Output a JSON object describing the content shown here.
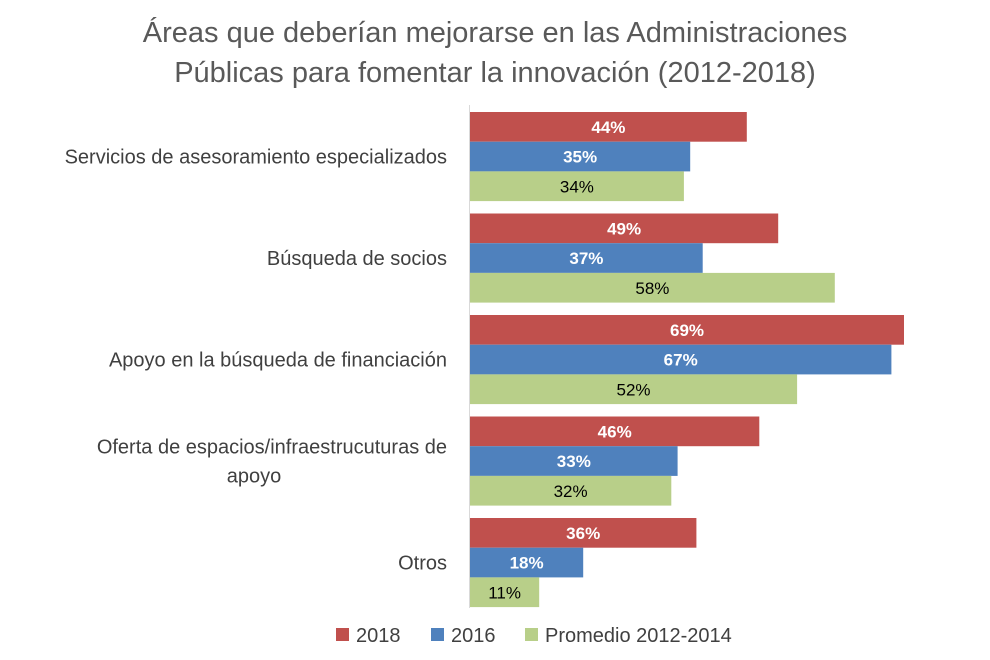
{
  "chart_data": {
    "type": "bar",
    "orientation": "horizontal",
    "title": "Áreas que deberían mejorarse en las Administraciones Públicas para fomentar la innovación (2012-2018)",
    "title_lines": [
      "Áreas que deberían mejorarse en las Administraciones",
      "Públicas para fomentar la innovación (2012-2018)"
    ],
    "xlabel": "",
    "ylabel": "",
    "xlim": [
      0,
      70
    ],
    "grid": false,
    "legend_position": "bottom",
    "value_suffix": "%",
    "categories": [
      "Servicios de asesoramiento especializados",
      "Búsqueda de socios",
      "Apoyo en la búsqueda de financiación",
      "Oferta de espacios/infraestrucuturas de apoyo",
      "Otros"
    ],
    "category_lines": [
      [
        "Servicios de asesoramiento especializados"
      ],
      [
        "Búsqueda de socios"
      ],
      [
        "Apoyo en la búsqueda de financiación"
      ],
      [
        "Oferta de espacios/infraestrucuturas de",
        "apoyo"
      ],
      [
        "Otros"
      ]
    ],
    "series": [
      {
        "name": "2018",
        "color": "#c0504d",
        "label_style": "bold-white",
        "values": [
          44,
          49,
          69,
          46,
          36
        ]
      },
      {
        "name": "2016",
        "color": "#4f81bd",
        "label_style": "bold-white",
        "values": [
          35,
          37,
          67,
          33,
          18
        ]
      },
      {
        "name": "Promedio 2012-2014",
        "color": "#b8cf89",
        "label_style": "dark",
        "values": [
          34,
          58,
          52,
          32,
          11
        ]
      }
    ]
  }
}
